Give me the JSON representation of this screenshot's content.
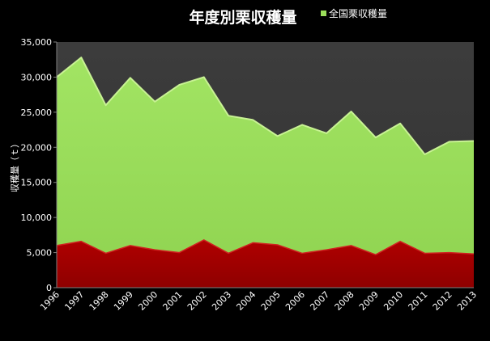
{
  "chart_data": {
    "type": "area",
    "title": "年度別栗収穫量",
    "ylabel": "収穫量（ｔ）",
    "xlabel": "",
    "ylim": [
      0,
      35000
    ],
    "yticks": [
      "0",
      "5,000",
      "10,000",
      "15,000",
      "20,000",
      "25,000",
      "30,000",
      "35,000"
    ],
    "grid": false,
    "legend_position": "top-right",
    "categories": [
      "1996",
      "1997",
      "1998",
      "1999",
      "2000",
      "2001",
      "2002",
      "2003",
      "2004",
      "2005",
      "2006",
      "2007",
      "2008",
      "2009",
      "2010",
      "2011",
      "2012",
      "2013"
    ],
    "series": [
      {
        "name": "全国栗収穫量",
        "color": "#9bde5a",
        "values": [
          30000,
          32800,
          26000,
          29900,
          26500,
          28900,
          30000,
          24500,
          23900,
          21600,
          23200,
          22000,
          25100,
          21400,
          23400,
          19000,
          20800,
          20900
        ]
      },
      {
        "name": "",
        "color": "#a50000",
        "values": [
          6000,
          6600,
          4900,
          6000,
          5400,
          5000,
          6800,
          4900,
          6400,
          6100,
          4900,
          5400,
          6000,
          4700,
          6600,
          4900,
          5000,
          4800
        ]
      }
    ],
    "colors": {
      "background": "#000000",
      "plot_area": "#3a3a3a"
    }
  }
}
